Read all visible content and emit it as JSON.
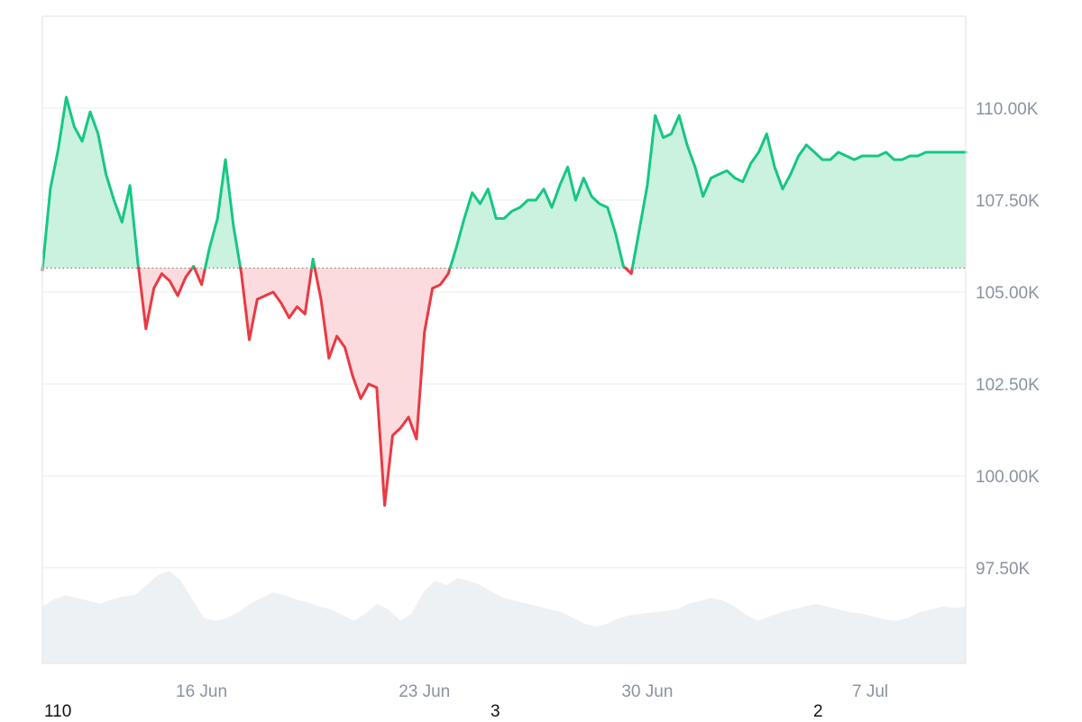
{
  "chart_data": {
    "type": "area",
    "y_ticks": [
      "110.00K",
      "107.50K",
      "105.00K",
      "102.50K",
      "100.00K",
      "97.50K"
    ],
    "y_tick_values": [
      110000,
      107500,
      105000,
      102500,
      100000,
      97500
    ],
    "x_ticks": [
      "16 Jun",
      "23 Jun",
      "30 Jun",
      "7 Jul"
    ],
    "x_tick_values": [
      "2025-06-16",
      "2025-06-23",
      "2025-06-30",
      "2025-07-07"
    ],
    "x_range": [
      "2025-06-11",
      "2025-07-10"
    ],
    "ylim": [
      94900,
      112500
    ],
    "baseline": 105650,
    "grid": true,
    "colors": {
      "up_line": "#16c784",
      "up_fill": "#c5f0dc",
      "down_line": "#ea3943",
      "down_fill": "#fbd7da",
      "volume": "#eef1f4",
      "grid": "#e8ebef"
    },
    "price_series": {
      "x": [
        "2025-06-11",
        "2025-06-11T06",
        "2025-06-11T12",
        "2025-06-11T18",
        "2025-06-12",
        "2025-06-12T06",
        "2025-06-12T12",
        "2025-06-12T18",
        "2025-06-13",
        "2025-06-13T06",
        "2025-06-13T12",
        "2025-06-13T18",
        "2025-06-14",
        "2025-06-14T06",
        "2025-06-14T12",
        "2025-06-14T18",
        "2025-06-15",
        "2025-06-15T06",
        "2025-06-15T12",
        "2025-06-15T18",
        "2025-06-16",
        "2025-06-16T06",
        "2025-06-16T12",
        "2025-06-16T18",
        "2025-06-17",
        "2025-06-17T06",
        "2025-06-17T12",
        "2025-06-17T18",
        "2025-06-18",
        "2025-06-18T06",
        "2025-06-18T12",
        "2025-06-18T18",
        "2025-06-19",
        "2025-06-19T06",
        "2025-06-19T12",
        "2025-06-19T18",
        "2025-06-20",
        "2025-06-20T06",
        "2025-06-20T12",
        "2025-06-20T18",
        "2025-06-21",
        "2025-06-21T06",
        "2025-06-21T12",
        "2025-06-21T18",
        "2025-06-22",
        "2025-06-22T06",
        "2025-06-22T12",
        "2025-06-22T18",
        "2025-06-23",
        "2025-06-23T06",
        "2025-06-23T12",
        "2025-06-23T18",
        "2025-06-24",
        "2025-06-24T06",
        "2025-06-24T12",
        "2025-06-24T18",
        "2025-06-25",
        "2025-06-25T06",
        "2025-06-25T12",
        "2025-06-25T18",
        "2025-06-26",
        "2025-06-26T06",
        "2025-06-26T12",
        "2025-06-26T18",
        "2025-06-27",
        "2025-06-27T06",
        "2025-06-27T12",
        "2025-06-27T18",
        "2025-06-28",
        "2025-06-28T06",
        "2025-06-28T12",
        "2025-06-28T18",
        "2025-06-29",
        "2025-06-29T06",
        "2025-06-29T12",
        "2025-06-29T18",
        "2025-06-30",
        "2025-06-30T06",
        "2025-06-30T12",
        "2025-06-30T18",
        "2025-07-01",
        "2025-07-01T06",
        "2025-07-01T12",
        "2025-07-01T18",
        "2025-07-02",
        "2025-07-02T06",
        "2025-07-02T12",
        "2025-07-02T18",
        "2025-07-03",
        "2025-07-03T06",
        "2025-07-03T12",
        "2025-07-03T18",
        "2025-07-04",
        "2025-07-04T06",
        "2025-07-04T12",
        "2025-07-04T18",
        "2025-07-05",
        "2025-07-05T06",
        "2025-07-05T12",
        "2025-07-05T18",
        "2025-07-06",
        "2025-07-06T06",
        "2025-07-06T12",
        "2025-07-06T18",
        "2025-07-07",
        "2025-07-07T06",
        "2025-07-07T12",
        "2025-07-07T18",
        "2025-07-08",
        "2025-07-08T06",
        "2025-07-08T12",
        "2025-07-08T18",
        "2025-07-09",
        "2025-07-09T06",
        "2025-07-09T12",
        "2025-07-09T18",
        "2025-07-10"
      ],
      "y": [
        105600,
        107800,
        108900,
        110300,
        109500,
        109100,
        109900,
        109300,
        108200,
        107500,
        106900,
        107900,
        105800,
        104000,
        105100,
        105500,
        105300,
        104900,
        105400,
        105700,
        105200,
        106200,
        107000,
        108600,
        106800,
        105500,
        103700,
        104800,
        104900,
        105000,
        104700,
        104300,
        104600,
        104400,
        105900,
        104800,
        103200,
        103800,
        103500,
        102700,
        102100,
        102500,
        102400,
        99200,
        101100,
        101300,
        101600,
        101000,
        103900,
        105100,
        105200,
        105500,
        106200,
        107000,
        107700,
        107400,
        107800,
        107000,
        107000,
        107200,
        107300,
        107500,
        107500,
        107800,
        107300,
        107900,
        108400,
        107500,
        108100,
        107600,
        107400,
        107300,
        106600,
        105700,
        105500,
        106700,
        107900,
        109800,
        109200,
        109300,
        109800,
        109000,
        108400,
        107600,
        108100,
        108200,
        108300,
        108100,
        108000,
        108500,
        108800,
        109300,
        108400,
        107800,
        108200,
        108700,
        109000,
        108800,
        108600,
        108600,
        108800,
        108700,
        108600,
        108700,
        108700,
        108700,
        108800,
        108600,
        108600,
        108700,
        108700,
        108800,
        108800,
        108800,
        108800,
        108800,
        108800
      ]
    },
    "volume_series": [
      0.4,
      0.45,
      0.48,
      0.46,
      0.44,
      0.42,
      0.45,
      0.47,
      0.48,
      0.55,
      0.62,
      0.65,
      0.58,
      0.45,
      0.32,
      0.3,
      0.32,
      0.36,
      0.42,
      0.46,
      0.5,
      0.48,
      0.45,
      0.43,
      0.4,
      0.38,
      0.34,
      0.3,
      0.35,
      0.42,
      0.38,
      0.3,
      0.35,
      0.5,
      0.58,
      0.55,
      0.6,
      0.58,
      0.55,
      0.5,
      0.46,
      0.44,
      0.42,
      0.4,
      0.38,
      0.36,
      0.32,
      0.28,
      0.26,
      0.28,
      0.32,
      0.34,
      0.35,
      0.36,
      0.37,
      0.38,
      0.42,
      0.44,
      0.46,
      0.44,
      0.4,
      0.34,
      0.3,
      0.33,
      0.36,
      0.38,
      0.4,
      0.42,
      0.4,
      0.38,
      0.36,
      0.35,
      0.33,
      0.31,
      0.3,
      0.32,
      0.36,
      0.38,
      0.4,
      0.39,
      0.4
    ],
    "footer_labels": [
      "110",
      "3",
      "2"
    ]
  }
}
